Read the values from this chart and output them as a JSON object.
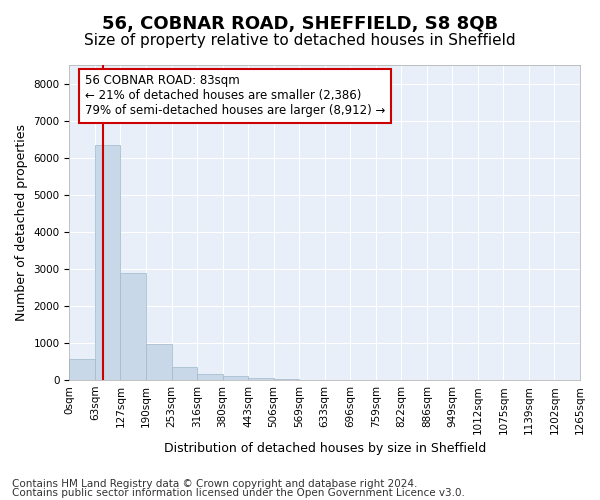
{
  "title": "56, COBNAR ROAD, SHEFFIELD, S8 8QB",
  "subtitle": "Size of property relative to detached houses in Sheffield",
  "xlabel": "Distribution of detached houses by size in Sheffield",
  "ylabel": "Number of detached properties",
  "tick_labels": [
    "0sqm",
    "63sqm",
    "127sqm",
    "190sqm",
    "253sqm",
    "316sqm",
    "380sqm",
    "443sqm",
    "506sqm",
    "569sqm",
    "633sqm",
    "696sqm",
    "759sqm",
    "822sqm",
    "886sqm",
    "949sqm",
    "1012sqm",
    "1075sqm",
    "1139sqm",
    "1202sqm",
    "1265sqm"
  ],
  "bar_values": [
    580,
    6350,
    2900,
    960,
    350,
    155,
    105,
    65,
    15,
    5,
    3,
    2,
    1,
    1,
    0,
    0,
    0,
    0,
    0,
    0
  ],
  "bar_color": "#c8d8e8",
  "bar_edge_color": "#a0b8cc",
  "ylim": [
    0,
    8500
  ],
  "yticks": [
    0,
    1000,
    2000,
    3000,
    4000,
    5000,
    6000,
    7000,
    8000
  ],
  "red_line_color": "#cc0000",
  "red_line_x": 1.3125,
  "annotation_text": "56 COBNAR ROAD: 83sqm\n← 21% of detached houses are smaller (2,386)\n79% of semi-detached houses are larger (8,912) →",
  "annotation_box_color": "#cc0000",
  "footer_line1": "Contains HM Land Registry data © Crown copyright and database right 2024.",
  "footer_line2": "Contains public sector information licensed under the Open Government Licence v3.0.",
  "bg_color": "#e8eff8",
  "grid_color": "#ffffff",
  "title_fontsize": 13,
  "subtitle_fontsize": 11,
  "axis_label_fontsize": 9,
  "tick_fontsize": 7.5,
  "annotation_fontsize": 8.5,
  "footer_fontsize": 7.5
}
